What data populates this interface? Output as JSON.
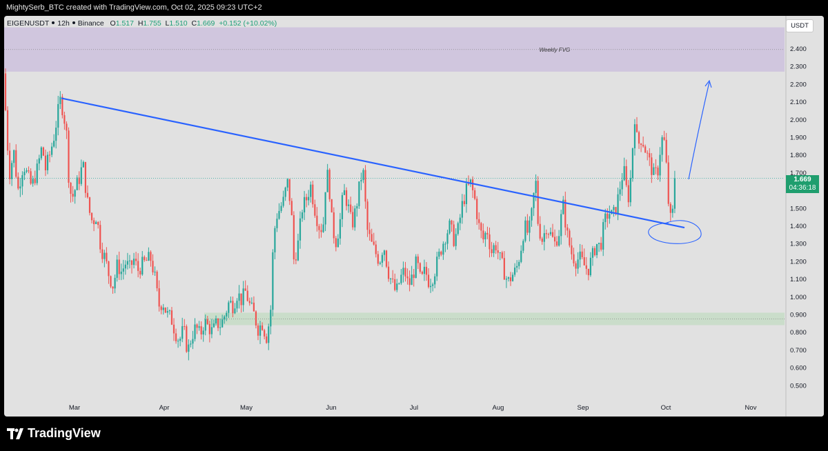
{
  "header": {
    "credit": "MightySerb_BTC created with TradingView.com, Oct 02, 2025 09:23 UTC+2"
  },
  "legend": {
    "symbol": "EIGENUSDT",
    "interval": "12h",
    "exchange": "Binance",
    "o_label": "O",
    "o_value": "1.517",
    "h_label": "H",
    "h_value": "1.755",
    "l_label": "L",
    "l_value": "1.510",
    "c_label": "C",
    "c_value": "1.669",
    "change": "+0.152 (+10.02%)"
  },
  "currency_button": "USDT",
  "price_tag": {
    "price": "1.669",
    "countdown": "04:36:18"
  },
  "annotations": {
    "fvg_label": "Weekly FVG"
  },
  "brand": {
    "name": "TradingView"
  },
  "colors": {
    "up": "#26a69a",
    "down": "#ef5350",
    "trendline": "#2962ff",
    "fvg_zone": "#cfc4dd",
    "support_zone": "#c8dcc8",
    "background": "#e1e1e1"
  },
  "chart_data": {
    "type": "candlestick",
    "x_labels": [
      "Mar",
      "Apr",
      "May",
      "Jun",
      "Jul",
      "Aug",
      "Sep",
      "Oct",
      "Nov"
    ],
    "y_ticks": [
      "2.400",
      "2.300",
      "2.200",
      "2.100",
      "2.000",
      "1.900",
      "1.800",
      "1.700",
      "1.600",
      "1.500",
      "1.400",
      "1.300",
      "1.200",
      "1.100",
      "1.000",
      "0.900",
      "0.800",
      "0.700",
      "0.600",
      "0.500"
    ],
    "ylim": [
      0.45,
      2.53
    ],
    "price_path": [
      [
        0,
        2.26
      ],
      [
        3,
        1.95
      ],
      [
        8,
        1.7
      ],
      [
        14,
        1.82
      ],
      [
        20,
        1.6
      ],
      [
        28,
        1.75
      ],
      [
        34,
        1.68
      ],
      [
        40,
        1.62
      ],
      [
        48,
        1.72
      ],
      [
        55,
        1.85
      ],
      [
        60,
        1.72
      ],
      [
        66,
        1.8
      ],
      [
        72,
        1.9
      ],
      [
        78,
        2.04
      ],
      [
        82,
        2.12
      ],
      [
        86,
        2.03
      ],
      [
        90,
        1.95
      ],
      [
        94,
        1.65
      ],
      [
        98,
        1.55
      ],
      [
        104,
        1.62
      ],
      [
        110,
        1.68
      ],
      [
        114,
        1.76
      ],
      [
        118,
        1.62
      ],
      [
        122,
        1.5
      ],
      [
        128,
        1.42
      ],
      [
        134,
        1.46
      ],
      [
        140,
        1.28
      ],
      [
        146,
        1.22
      ],
      [
        152,
        1.12
      ],
      [
        158,
        1.06
      ],
      [
        164,
        1.18
      ],
      [
        170,
        1.14
      ],
      [
        176,
        1.19
      ],
      [
        182,
        1.16
      ],
      [
        188,
        1.21
      ],
      [
        194,
        1.15
      ],
      [
        200,
        1.18
      ],
      [
        206,
        1.2
      ],
      [
        212,
        1.22
      ],
      [
        218,
        1.12
      ],
      [
        224,
        0.95
      ],
      [
        230,
        0.97
      ],
      [
        236,
        0.9
      ],
      [
        242,
        0.88
      ],
      [
        248,
        0.8
      ],
      [
        254,
        0.75
      ],
      [
        260,
        0.82
      ],
      [
        266,
        0.69
      ],
      [
        272,
        0.78
      ],
      [
        278,
        0.83
      ],
      [
        284,
        0.78
      ],
      [
        290,
        0.86
      ],
      [
        296,
        0.83
      ],
      [
        302,
        0.8
      ],
      [
        308,
        0.85
      ],
      [
        314,
        0.84
      ],
      [
        320,
        0.9
      ],
      [
        326,
        0.97
      ],
      [
        332,
        0.95
      ],
      [
        338,
        1.02
      ],
      [
        344,
        0.98
      ],
      [
        350,
        1.03
      ],
      [
        356,
        0.95
      ],
      [
        362,
        0.9
      ],
      [
        368,
        0.82
      ],
      [
        374,
        0.85
      ],
      [
        380,
        0.77
      ],
      [
        386,
        0.9
      ],
      [
        390,
        1.3
      ],
      [
        394,
        1.45
      ],
      [
        400,
        1.5
      ],
      [
        406,
        1.55
      ],
      [
        410,
        1.66
      ],
      [
        416,
        1.5
      ],
      [
        420,
        1.2
      ],
      [
        426,
        1.3
      ],
      [
        432,
        1.5
      ],
      [
        438,
        1.55
      ],
      [
        444,
        1.63
      ],
      [
        450,
        1.5
      ],
      [
        456,
        1.4
      ],
      [
        462,
        1.38
      ],
      [
        466,
        1.65
      ],
      [
        470,
        1.7
      ],
      [
        474,
        1.45
      ],
      [
        480,
        1.3
      ],
      [
        486,
        1.4
      ],
      [
        492,
        1.6
      ],
      [
        498,
        1.52
      ],
      [
        504,
        1.4
      ],
      [
        510,
        1.5
      ],
      [
        516,
        1.65
      ],
      [
        520,
        1.72
      ],
      [
        526,
        1.38
      ],
      [
        532,
        1.3
      ],
      [
        538,
        1.25
      ],
      [
        544,
        1.2
      ],
      [
        550,
        1.3
      ],
      [
        556,
        1.15
      ],
      [
        562,
        1.08
      ],
      [
        568,
        1.02
      ],
      [
        574,
        1.1
      ],
      [
        580,
        1.15
      ],
      [
        586,
        1.06
      ],
      [
        592,
        1.12
      ],
      [
        598,
        1.2
      ],
      [
        604,
        1.08
      ],
      [
        610,
        1.15
      ],
      [
        616,
        1.08
      ],
      [
        622,
        1.12
      ],
      [
        628,
        1.2
      ],
      [
        634,
        1.28
      ],
      [
        640,
        1.35
      ],
      [
        646,
        1.4
      ],
      [
        652,
        1.32
      ],
      [
        658,
        1.38
      ],
      [
        664,
        1.52
      ],
      [
        670,
        1.6
      ],
      [
        676,
        1.64
      ],
      [
        682,
        1.55
      ],
      [
        688,
        1.4
      ],
      [
        694,
        1.32
      ],
      [
        700,
        1.38
      ],
      [
        706,
        1.25
      ],
      [
        712,
        1.3
      ],
      [
        718,
        1.22
      ],
      [
        724,
        1.15
      ],
      [
        730,
        1.08
      ],
      [
        736,
        1.12
      ],
      [
        742,
        1.15
      ],
      [
        748,
        1.25
      ],
      [
        754,
        1.4
      ],
      [
        760,
        1.35
      ],
      [
        766,
        1.5
      ],
      [
        770,
        1.68
      ],
      [
        774,
        1.4
      ],
      [
        780,
        1.32
      ],
      [
        786,
        1.4
      ],
      [
        792,
        1.35
      ],
      [
        798,
        1.3
      ],
      [
        804,
        1.36
      ],
      [
        810,
        1.52
      ],
      [
        816,
        1.35
      ],
      [
        822,
        1.25
      ],
      [
        828,
        1.2
      ],
      [
        834,
        1.22
      ],
      [
        840,
        1.18
      ],
      [
        846,
        1.15
      ],
      [
        852,
        1.22
      ],
      [
        858,
        1.3
      ],
      [
        864,
        1.28
      ],
      [
        870,
        1.42
      ],
      [
        876,
        1.48
      ],
      [
        882,
        1.45
      ],
      [
        888,
        1.52
      ],
      [
        894,
        1.65
      ],
      [
        898,
        1.72
      ],
      [
        902,
        1.6
      ],
      [
        906,
        1.55
      ],
      [
        910,
        1.8
      ],
      [
        914,
        2.02
      ],
      [
        918,
        1.85
      ],
      [
        924,
        1.9
      ],
      [
        930,
        1.82
      ],
      [
        936,
        1.75
      ],
      [
        942,
        1.68
      ],
      [
        948,
        1.72
      ],
      [
        952,
        1.88
      ],
      [
        956,
        1.9
      ],
      [
        960,
        1.72
      ],
      [
        964,
        1.45
      ],
      [
        968,
        1.42
      ],
      [
        972,
        1.669
      ]
    ],
    "trendline": {
      "from": [
        83,
        2.12
      ],
      "to": [
        986,
        1.39
      ]
    },
    "zones": [
      {
        "label": "Weekly FVG",
        "y_from": 2.27,
        "y_to": 2.52,
        "x_from": 0,
        "x_to": 1131
      },
      {
        "label": "",
        "y_from": 0.84,
        "y_to": 0.91,
        "x_from": 290,
        "x_to": 1131
      }
    ],
    "current_price": 1.669
  }
}
